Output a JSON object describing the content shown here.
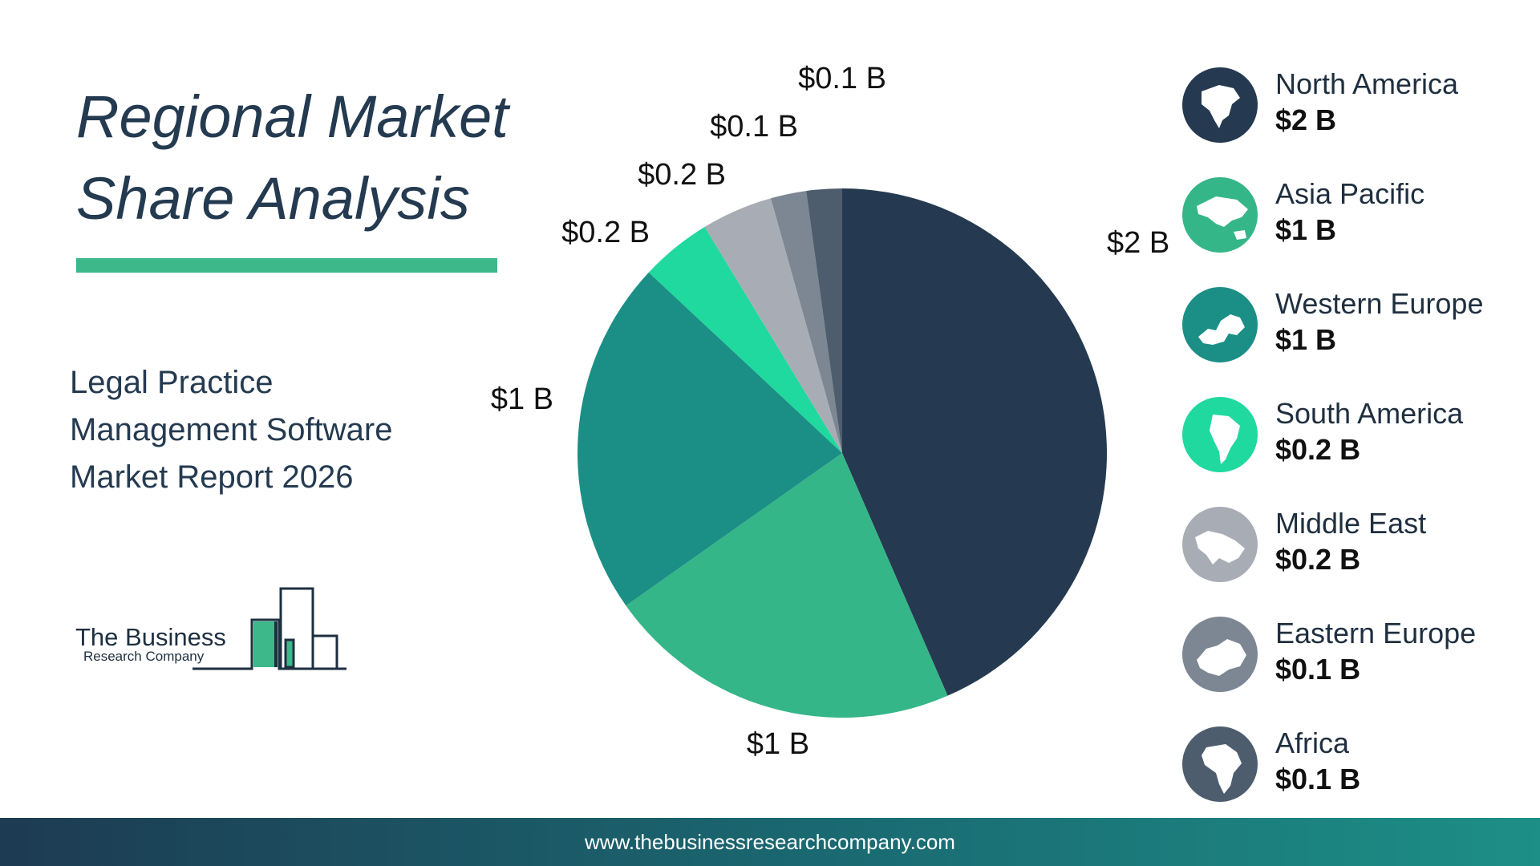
{
  "header": {
    "title_line1": "Regional Market",
    "title_line2": "Share Analysis"
  },
  "subtitle": {
    "line1": "Legal Practice",
    "line2": "Management Software",
    "line3": "Market Report 2026"
  },
  "logo": {
    "line1": "The Business",
    "line2": "Research Company"
  },
  "footer": {
    "url": "www.thebusinessresearchcompany.com"
  },
  "chart_data": {
    "type": "pie",
    "title": "Regional Market Share Analysis",
    "categories": [
      "North America",
      "Asia Pacific",
      "Western Europe",
      "South America",
      "Middle East",
      "Eastern Europe",
      "Africa"
    ],
    "values": [
      2,
      1,
      1,
      0.2,
      0.2,
      0.1,
      0.1
    ],
    "data_labels": [
      "$2 B",
      "$1 B",
      "$1 B",
      "$0.2 B",
      "$0.2 B",
      "$0.1 B",
      "$0.1 B"
    ],
    "colors": [
      "#253a50",
      "#35b688",
      "#1b8f86",
      "#1fd99e",
      "#a8adb5",
      "#7c8793",
      "#4e5d6d"
    ],
    "legend_placement": "right"
  },
  "legend": {
    "items": [
      {
        "name": "North America",
        "value": "$2 B",
        "icon": "north-america-map-icon",
        "color": "#253a50"
      },
      {
        "name": "Asia Pacific",
        "value": "$1 B",
        "icon": "asia-pacific-map-icon",
        "color": "#35b688"
      },
      {
        "name": "Western Europe",
        "value": "$1 B",
        "icon": "western-europe-map-icon",
        "color": "#1b8f86"
      },
      {
        "name": "South America",
        "value": "$0.2 B",
        "icon": "south-america-map-icon",
        "color": "#1fd99e"
      },
      {
        "name": "Middle East",
        "value": "$0.2 B",
        "icon": "middle-east-map-icon",
        "color": "#a8adb5"
      },
      {
        "name": "Eastern Europe",
        "value": "$0.1 B",
        "icon": "eastern-europe-map-icon",
        "color": "#7c8793"
      },
      {
        "name": "Africa",
        "value": "$0.1 B",
        "icon": "africa-map-icon",
        "color": "#4e5d6d"
      }
    ]
  }
}
